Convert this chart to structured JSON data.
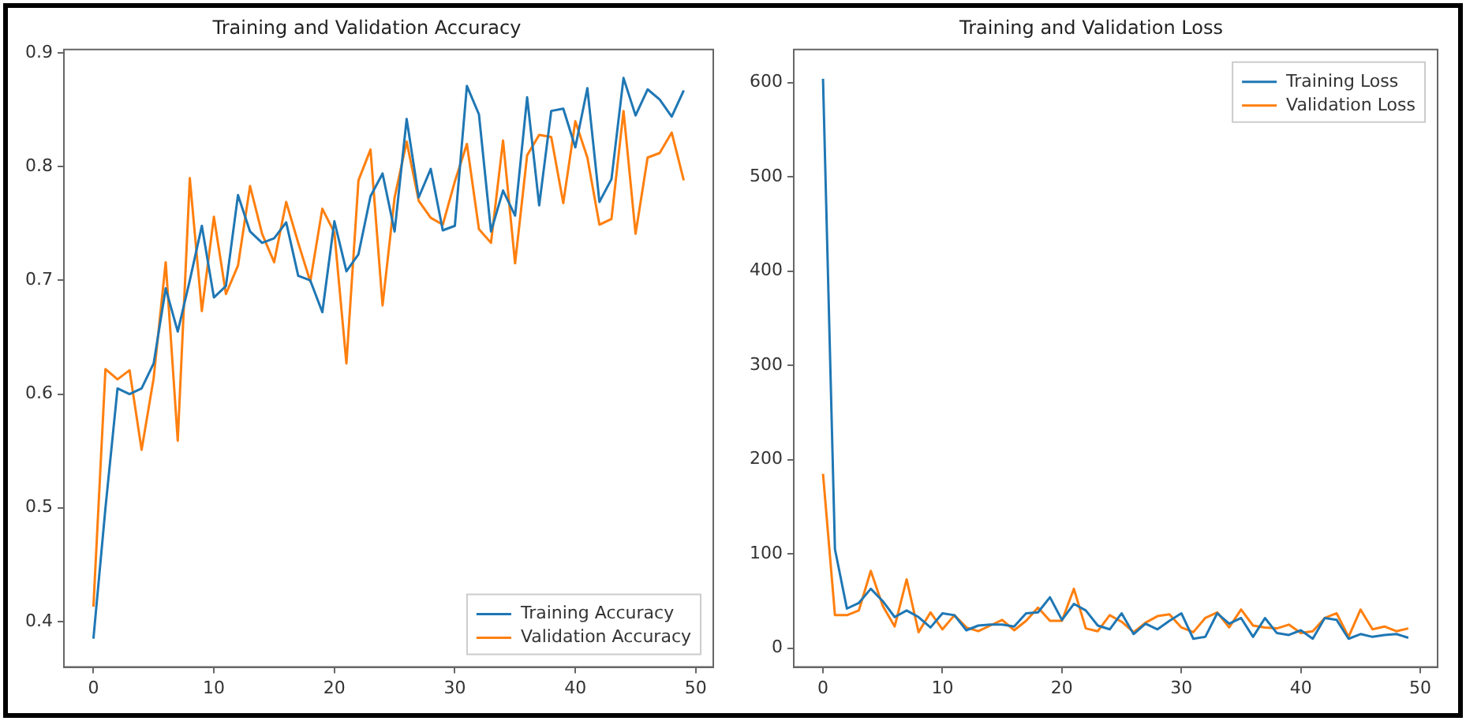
{
  "chart_data": [
    {
      "type": "line",
      "title": "Training and Validation Accuracy",
      "x": [
        0,
        1,
        2,
        3,
        4,
        5,
        6,
        7,
        8,
        9,
        10,
        11,
        12,
        13,
        14,
        15,
        16,
        17,
        18,
        19,
        20,
        21,
        22,
        23,
        24,
        25,
        26,
        27,
        28,
        29,
        30,
        31,
        32,
        33,
        34,
        35,
        36,
        37,
        38,
        39,
        40,
        41,
        42,
        43,
        44,
        45,
        46,
        47,
        48,
        49
      ],
      "series": [
        {
          "name": "Training Accuracy",
          "color": "#1f77b4",
          "values": [
            0.385,
            0.5,
            0.605,
            0.6,
            0.605,
            0.627,
            0.693,
            0.655,
            0.7,
            0.748,
            0.685,
            0.695,
            0.775,
            0.743,
            0.733,
            0.737,
            0.751,
            0.704,
            0.7,
            0.672,
            0.752,
            0.708,
            0.723,
            0.774,
            0.794,
            0.743,
            0.842,
            0.773,
            0.798,
            0.744,
            0.748,
            0.871,
            0.846,
            0.743,
            0.779,
            0.757,
            0.861,
            0.766,
            0.849,
            0.851,
            0.817,
            0.869,
            0.769,
            0.789,
            0.878,
            0.845,
            0.868,
            0.859,
            0.844,
            0.867
          ]
        },
        {
          "name": "Validation Accuracy",
          "color": "#ff7f0e",
          "values": [
            0.413,
            0.622,
            0.613,
            0.621,
            0.551,
            0.614,
            0.716,
            0.559,
            0.79,
            0.673,
            0.756,
            0.688,
            0.713,
            0.783,
            0.741,
            0.716,
            0.769,
            0.733,
            0.699,
            0.763,
            0.742,
            0.627,
            0.788,
            0.815,
            0.678,
            0.773,
            0.822,
            0.77,
            0.755,
            0.749,
            0.787,
            0.82,
            0.745,
            0.733,
            0.823,
            0.715,
            0.81,
            0.828,
            0.826,
            0.768,
            0.84,
            0.808,
            0.749,
            0.754,
            0.849,
            0.741,
            0.808,
            0.812,
            0.83,
            0.788
          ]
        }
      ],
      "xlim": [
        -2.45,
        51.45
      ],
      "xticks": [
        0,
        10,
        20,
        30,
        40,
        50
      ],
      "ylim": [
        0.36,
        0.903
      ],
      "yticks": [
        0.4,
        0.5,
        0.6,
        0.7,
        0.8,
        0.9
      ],
      "legend": "bottom right",
      "grid": false
    },
    {
      "type": "line",
      "title": "Training and Validation Loss",
      "x": [
        0,
        1,
        2,
        3,
        4,
        5,
        6,
        7,
        8,
        9,
        10,
        11,
        12,
        13,
        14,
        15,
        16,
        17,
        18,
        19,
        20,
        21,
        22,
        23,
        24,
        25,
        26,
        27,
        28,
        29,
        30,
        31,
        32,
        33,
        34,
        35,
        36,
        37,
        38,
        39,
        40,
        41,
        42,
        43,
        44,
        45,
        46,
        47,
        48,
        49
      ],
      "series": [
        {
          "name": "Training Loss",
          "color": "#1f77b4",
          "values": [
            604,
            105,
            42,
            48,
            63,
            50,
            33,
            40,
            33,
            22,
            37,
            35,
            19,
            24,
            25,
            25,
            23,
            37,
            38,
            54,
            30,
            47,
            40,
            24,
            20,
            37,
            15,
            26,
            20,
            29,
            37,
            10,
            12,
            37,
            26,
            32,
            12,
            32,
            16,
            14,
            19,
            10,
            32,
            30,
            10,
            15,
            12,
            14,
            15,
            11
          ]
        },
        {
          "name": "Validation Loss",
          "color": "#ff7f0e",
          "values": [
            185,
            35,
            35,
            40,
            82,
            45,
            23,
            73,
            17,
            38,
            20,
            35,
            22,
            18,
            24,
            30,
            19,
            29,
            43,
            29,
            29,
            63,
            21,
            18,
            35,
            28,
            17,
            27,
            34,
            36,
            22,
            17,
            32,
            38,
            22,
            41,
            24,
            22,
            21,
            25,
            16,
            18,
            32,
            37,
            12,
            41,
            20,
            23,
            18,
            21
          ]
        }
      ],
      "xlim": [
        -2.45,
        51.45
      ],
      "xticks": [
        0,
        10,
        20,
        30,
        40,
        50
      ],
      "ylim": [
        -20,
        635
      ],
      "yticks": [
        0,
        100,
        200,
        300,
        400,
        500,
        600
      ],
      "legend": "top right",
      "grid": false
    }
  ]
}
